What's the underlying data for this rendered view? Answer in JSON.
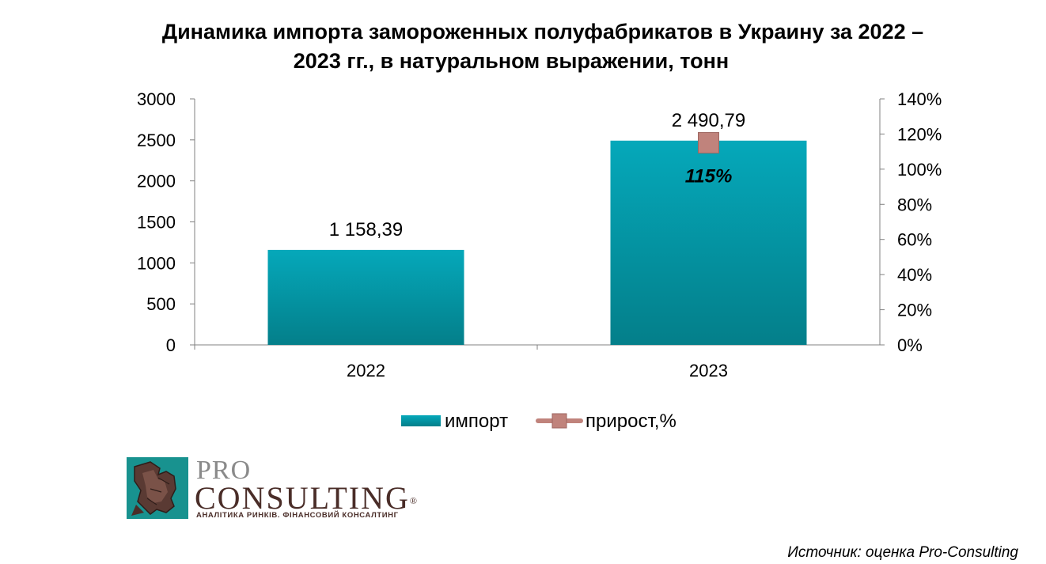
{
  "chart_data": {
    "type": "bar",
    "title_line1": "Динамика импорта замороженных полуфабрикатов в Украину за 2022 –",
    "title_line2": "2023 гг., в натуральном выражении, тонн",
    "categories": [
      "2022",
      "2023"
    ],
    "series": [
      {
        "name": "импорт",
        "type": "bar",
        "axis": "left",
        "values": [
          1158.39,
          2490.79
        ],
        "labels": [
          "1 158,39",
          "2 490,79"
        ]
      },
      {
        "name": "прирост,%",
        "type": "marker",
        "axis": "right",
        "values": [
          null,
          115
        ],
        "labels": [
          "",
          "115%"
        ]
      }
    ],
    "ylim": [
      0,
      3000
    ],
    "y_ticks": [
      0,
      500,
      1000,
      1500,
      2000,
      2500,
      3000
    ],
    "y_tick_labels": [
      "0",
      "500",
      "1000",
      "1500",
      "2000",
      "2500",
      "3000"
    ],
    "y2lim": [
      0,
      140
    ],
    "y2_ticks": [
      0,
      20,
      40,
      60,
      80,
      100,
      120,
      140
    ],
    "y2_tick_labels": [
      "0%",
      "20%",
      "40%",
      "60%",
      "80%",
      "100%",
      "120%",
      "140%"
    ],
    "legend_position": "bottom",
    "grid": false,
    "colors": {
      "bar_top": "#05A8BA",
      "bar_bottom": "#047F8A",
      "marker": "#C0837C",
      "marker_edge": "#9E6660"
    }
  },
  "logo": {
    "pro": "PRO",
    "consulting": "CONSULTING",
    "reg": "®",
    "tagline": "АНАЛІТИКА РИНКІВ. ФІНАНСОВИЙ КОНСАЛТИНГ"
  },
  "source": "Источник: оценка Pro-Consulting"
}
